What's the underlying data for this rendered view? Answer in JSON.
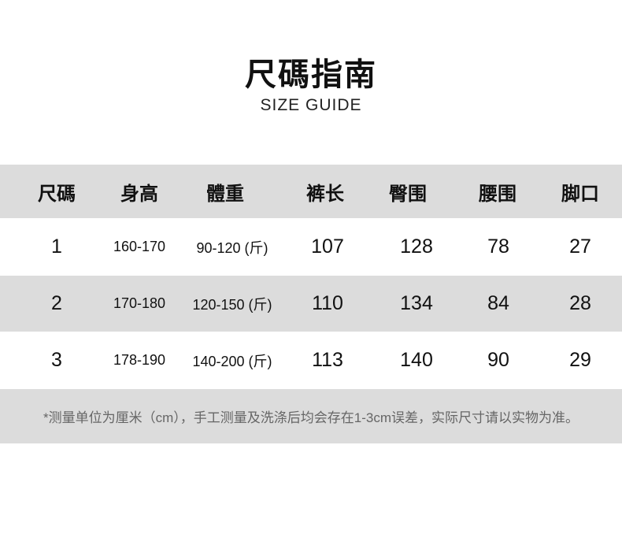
{
  "header": {
    "title": "尺碼指南",
    "subtitle": "SIZE GUIDE"
  },
  "table": {
    "columns": [
      "尺碼",
      "身高",
      "體重",
      "裤长",
      "臀围",
      "腰围",
      "脚口"
    ],
    "rows": [
      [
        "1",
        "160-170",
        "90-120 (斤)",
        "107",
        "128",
        "78",
        "27"
      ],
      [
        "2",
        "170-180",
        "120-150 (斤)",
        "110",
        "134",
        "84",
        "28"
      ],
      [
        "3",
        "178-190",
        "140-200 (斤)",
        "113",
        "140",
        "90",
        "29"
      ]
    ]
  },
  "note": "*测量单位为厘米（cm），手工测量及洗涤后均会存在1-3cm误差，实际尺寸请以实物为准。",
  "colors": {
    "band": "#dcdcdc",
    "text": "#111111",
    "note": "#666666"
  }
}
